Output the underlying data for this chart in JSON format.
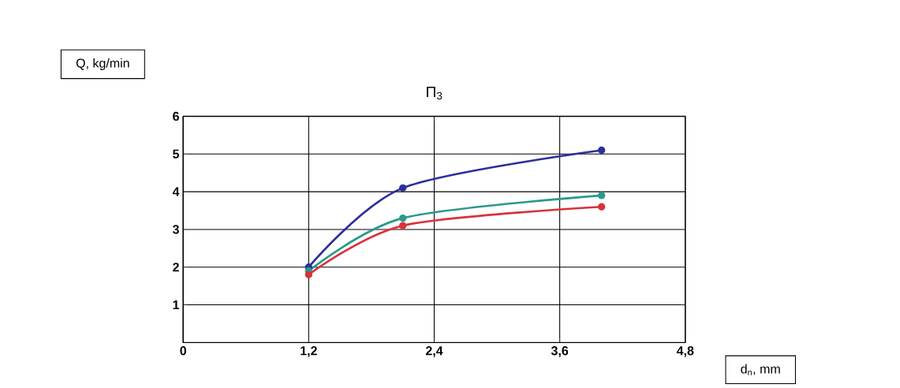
{
  "chart_data": {
    "type": "line",
    "title": "Π$_{3}$",
    "xlabel": "d$_{n}$, mm",
    "ylabel": "Q, kg/min",
    "x": [
      1.2,
      2.1,
      4.0
    ],
    "series": [
      {
        "color": "#2b2f9a",
        "values": [
          2.0,
          4.1,
          5.1
        ]
      },
      {
        "color": "#2a9a8a",
        "values": [
          1.9,
          3.3,
          3.9
        ]
      },
      {
        "color": "#d8323a",
        "values": [
          1.8,
          3.1,
          3.6
        ]
      }
    ],
    "xlim": [
      0,
      4.8
    ],
    "ylim": [
      0,
      6
    ],
    "xticks": [
      0,
      {
        "value": 1.2,
        "label": "1,2"
      },
      {
        "value": 2.4,
        "label": "2,4"
      },
      {
        "value": 3.6,
        "label": "3,6"
      },
      {
        "value": 4.8,
        "label": "4,8"
      }
    ],
    "yticks": [
      1,
      2,
      3,
      4,
      5,
      6
    ],
    "grid": true,
    "marker": "circle",
    "line_style": "solid"
  }
}
